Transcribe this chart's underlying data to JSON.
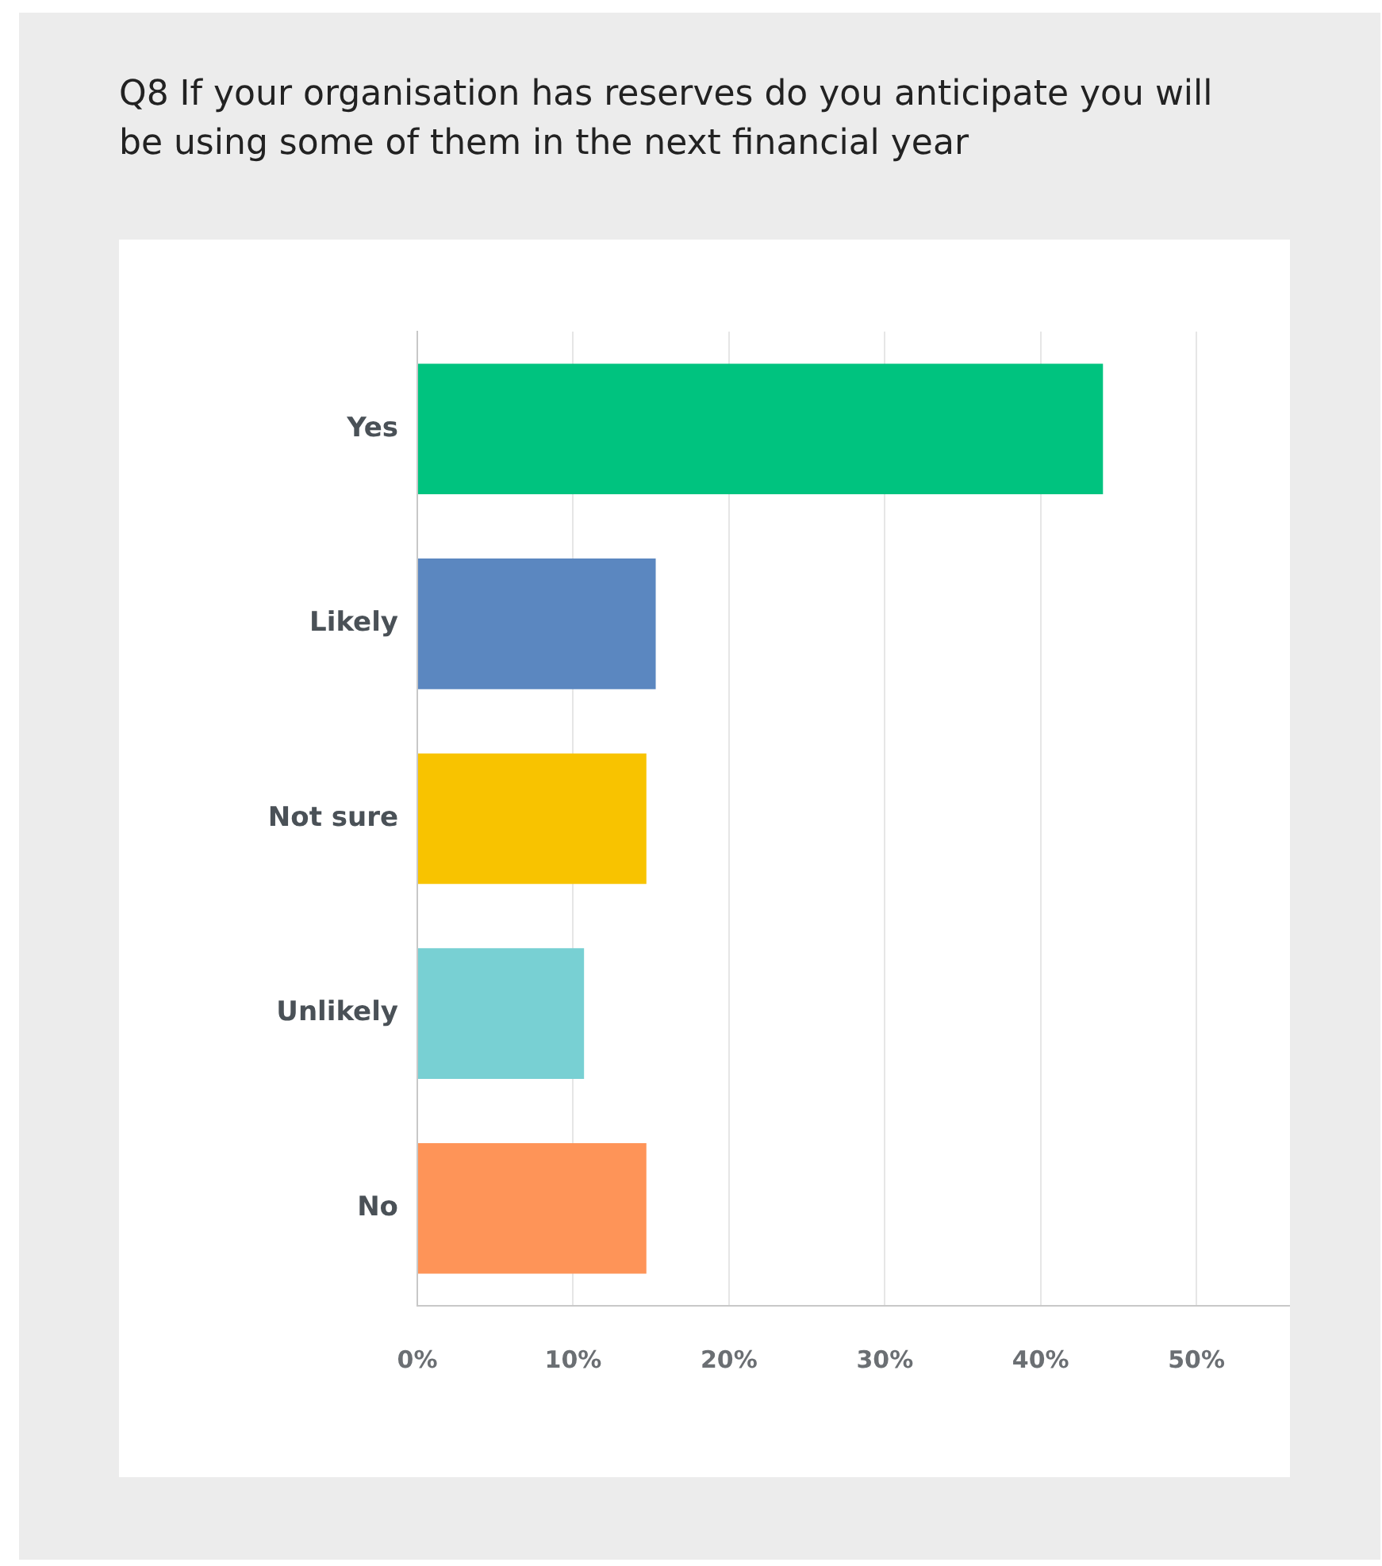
{
  "chart_data": {
    "type": "bar",
    "orientation": "horizontal",
    "title": "Q8 If your organisation has reserves do you anticipate you will be using some of them in the next financial year",
    "categories": [
      "Yes",
      "Likely",
      "Not sure",
      "Unlikely",
      "No"
    ],
    "values": [
      44,
      15.3,
      14.7,
      10.7,
      14.7
    ],
    "colors": [
      "#00c37f",
      "#5b87c0",
      "#f8c300",
      "#78d0d3",
      "#fe9458"
    ],
    "xlim": [
      0,
      56
    ],
    "xticks": [
      {
        "value": 0,
        "label": "0%"
      },
      {
        "value": 10,
        "label": "10%"
      },
      {
        "value": 20,
        "label": "20%"
      },
      {
        "value": 30,
        "label": "30%"
      },
      {
        "value": 40,
        "label": "40%"
      },
      {
        "value": 50,
        "label": "50%"
      }
    ],
    "grid": "x"
  }
}
